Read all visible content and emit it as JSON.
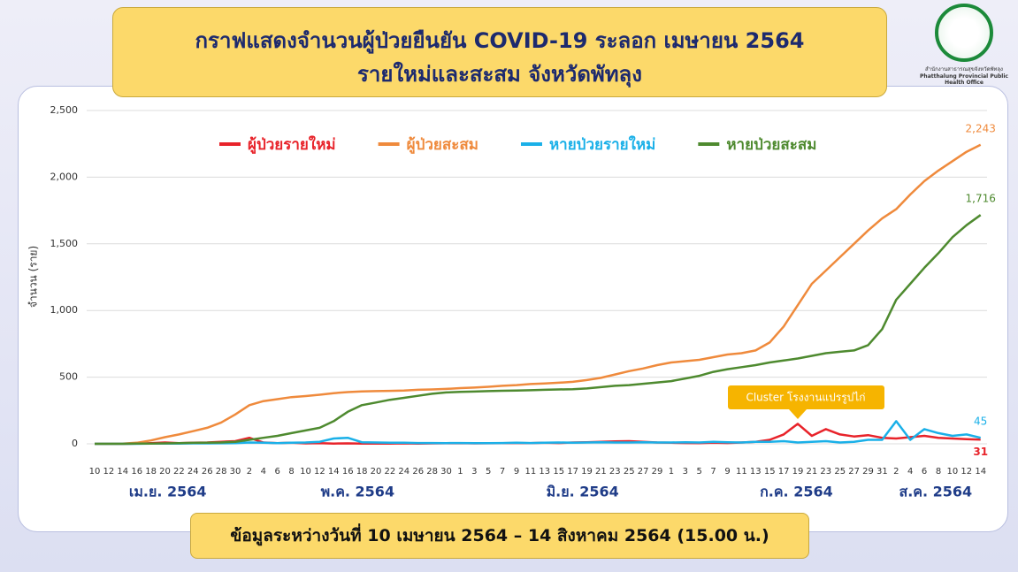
{
  "header": {
    "title": "กราฟแสดงจำนวนผู้ป่วยยืนยัน COVID-19 ระลอก เมษายน 2564",
    "subtitle": "รายใหม่และสะสม จังหวัดพัทลุง",
    "org_th": "สำนักงานสาธารณสุขจังหวัดพัทลุง",
    "org_en": "Phatthalung Provincial Public Health Office"
  },
  "chart_data": {
    "type": "line",
    "ylabel": "จำนวน (ราย)",
    "note": "ข้อมูลระหว่างวันที่ 10 เมษายน 2564 – 14 สิงหาคม 2564 (15.00 น.)",
    "annotation": "Cluster โรงงานแปรรูปไก่",
    "month_labels": [
      "เม.ย. 2564",
      "พ.ค. 2564",
      "มิ.ย. 2564",
      "ก.ค. 2564",
      "ส.ค. 2564"
    ],
    "categories": [
      "10",
      "12",
      "14",
      "16",
      "18",
      "20",
      "22",
      "24",
      "26",
      "28",
      "30",
      "2",
      "4",
      "6",
      "8",
      "10",
      "12",
      "14",
      "16",
      "18",
      "20",
      "22",
      "24",
      "26",
      "28",
      "30",
      "1",
      "3",
      "5",
      "7",
      "9",
      "11",
      "13",
      "15",
      "17",
      "19",
      "21",
      "23",
      "25",
      "27",
      "29",
      "1",
      "3",
      "5",
      "7",
      "9",
      "11",
      "13",
      "15",
      "17",
      "19",
      "21",
      "23",
      "25",
      "27",
      "29",
      "31",
      "2",
      "4",
      "6",
      "8",
      "10",
      "12",
      "14"
    ],
    "ylim": [
      0,
      2500
    ],
    "yticks": [
      0,
      500,
      {
        "value": 1000,
        "label": "1,000"
      },
      {
        "value": 1500,
        "label": "1,500"
      },
      {
        "value": 2000,
        "label": "2,000"
      },
      {
        "value": 2500,
        "label": "2,500"
      }
    ],
    "grid": true,
    "legend": "top",
    "series": [
      {
        "name": "ผู้ป่วยรายใหม่",
        "color": "#e8232a",
        "values": [
          0,
          0,
          0,
          2,
          5,
          10,
          5,
          8,
          10,
          15,
          20,
          45,
          10,
          5,
          8,
          3,
          5,
          2,
          3,
          2,
          1,
          2,
          3,
          2,
          3,
          4,
          5,
          3,
          4,
          5,
          6,
          5,
          8,
          6,
          10,
          12,
          15,
          18,
          20,
          15,
          10,
          8,
          6,
          5,
          8,
          6,
          10,
          15,
          30,
          70,
          150,
          60,
          110,
          70,
          55,
          65,
          45,
          40,
          50,
          60,
          45,
          40,
          35,
          31
        ]
      },
      {
        "name": "ผู้ป่วยสะสม",
        "color": "#ef8a3c",
        "values": [
          0,
          0,
          2,
          8,
          25,
          50,
          70,
          95,
          120,
          160,
          220,
          290,
          320,
          335,
          350,
          358,
          368,
          380,
          388,
          393,
          395,
          397,
          400,
          405,
          408,
          412,
          418,
          422,
          428,
          435,
          440,
          448,
          452,
          458,
          465,
          478,
          495,
          520,
          545,
          565,
          590,
          610,
          620,
          630,
          650,
          670,
          680,
          700,
          760,
          880,
          1040,
          1200,
          1300,
          1400,
          1500,
          1600,
          1690,
          1760,
          1870,
          1970,
          2050,
          2120,
          2190,
          2243
        ],
        "value_labels": [
          null,
          null,
          null,
          null,
          null,
          null,
          null,
          null,
          null,
          null,
          null,
          null,
          null,
          null,
          null,
          null,
          null,
          null,
          null,
          null,
          null,
          null,
          null,
          null,
          null,
          null,
          null,
          null,
          null,
          null,
          null,
          null,
          null,
          null,
          null,
          null,
          null,
          null,
          null,
          null,
          null,
          null,
          null,
          null,
          null,
          null,
          null,
          null,
          null,
          null,
          null,
          null,
          null,
          null,
          null,
          null,
          null,
          null,
          null,
          null,
          null,
          null,
          null,
          "2,243"
        ]
      },
      {
        "name": "หายป่วยรายใหม่",
        "color": "#1ab0e8",
        "values": [
          0,
          0,
          0,
          0,
          1,
          2,
          2,
          3,
          3,
          4,
          5,
          10,
          8,
          5,
          8,
          10,
          15,
          40,
          45,
          12,
          10,
          8,
          8,
          6,
          6,
          5,
          6,
          5,
          5,
          6,
          8,
          6,
          8,
          10,
          8,
          10,
          12,
          10,
          10,
          12,
          10,
          10,
          12,
          10,
          15,
          12,
          10,
          15,
          15,
          20,
          10,
          15,
          20,
          10,
          15,
          30,
          30,
          170,
          30,
          110,
          80,
          60,
          70,
          45
        ]
      },
      {
        "name": "หายป่วยสะสม",
        "color": "#4e8a2f",
        "values": [
          0,
          0,
          0,
          1,
          2,
          3,
          5,
          7,
          8,
          10,
          15,
          30,
          45,
          60,
          80,
          100,
          120,
          170,
          240,
          290,
          310,
          330,
          345,
          360,
          375,
          385,
          390,
          392,
          395,
          398,
          400,
          402,
          405,
          408,
          410,
          415,
          425,
          435,
          440,
          450,
          460,
          470,
          490,
          510,
          540,
          560,
          575,
          590,
          610,
          625,
          640,
          660,
          680,
          690,
          700,
          740,
          860,
          1080,
          1200,
          1320,
          1430,
          1550,
          1640,
          1716
        ],
        "value_labels": [
          null,
          null,
          null,
          null,
          null,
          null,
          null,
          null,
          null,
          null,
          null,
          null,
          null,
          null,
          null,
          null,
          null,
          null,
          null,
          null,
          null,
          null,
          null,
          null,
          null,
          null,
          null,
          null,
          null,
          null,
          null,
          null,
          null,
          null,
          null,
          null,
          null,
          null,
          null,
          null,
          null,
          null,
          null,
          null,
          null,
          null,
          null,
          null,
          null,
          null,
          null,
          null,
          null,
          null,
          null,
          null,
          null,
          null,
          null,
          null,
          null,
          null,
          null,
          "1,716"
        ]
      }
    ]
  }
}
